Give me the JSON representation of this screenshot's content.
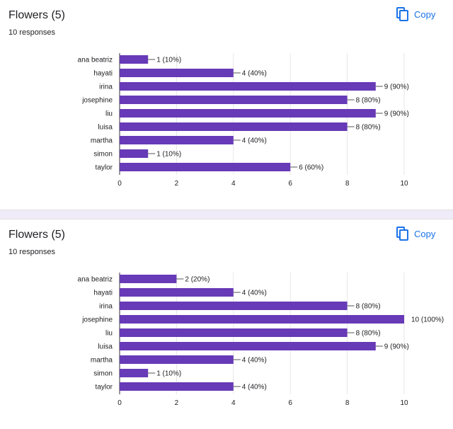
{
  "cards": [
    {
      "title": "Flowers (5)",
      "subtitle": "10 responses",
      "copy_label": "Copy"
    },
    {
      "title": "Flowers (5)",
      "subtitle": "10 responses",
      "copy_label": "Copy"
    }
  ],
  "colors": {
    "bar": "#673ab7",
    "accent": "#1a73e8",
    "grid": "#e6e6e6"
  },
  "icons": {
    "copy": "copy-icon"
  },
  "chart_data": [
    {
      "type": "bar",
      "orientation": "horizontal",
      "categories": [
        "ana beatriz",
        "hayati",
        "irina",
        "josephine",
        "liu",
        "luisa",
        "martha",
        "simon",
        "taylor"
      ],
      "values": [
        1,
        4,
        9,
        8,
        9,
        8,
        4,
        1,
        6
      ],
      "labels": [
        "1 (10%)",
        "4 (40%)",
        "9 (90%)",
        "8 (80%)",
        "9 (90%)",
        "8 (80%)",
        "4 (40%)",
        "1 (10%)",
        "6 (60%)"
      ],
      "xlim": [
        0,
        10
      ],
      "ticks": [
        0,
        2,
        4,
        6,
        8,
        10
      ],
      "grid": true
    },
    {
      "type": "bar",
      "orientation": "horizontal",
      "categories": [
        "ana beatriz",
        "hayati",
        "irina",
        "josephine",
        "liu",
        "luisa",
        "martha",
        "simon",
        "taylor"
      ],
      "values": [
        2,
        4,
        8,
        10,
        8,
        9,
        4,
        1,
        4
      ],
      "labels": [
        "2 (20%)",
        "4 (40%)",
        "8 (80%)",
        "10 (100%)",
        "8 (80%)",
        "9 (90%)",
        "4 (40%)",
        "1 (10%)",
        "4 (40%)"
      ],
      "xlim": [
        0,
        10
      ],
      "ticks": [
        0,
        2,
        4,
        6,
        8,
        10
      ],
      "grid": true
    }
  ]
}
